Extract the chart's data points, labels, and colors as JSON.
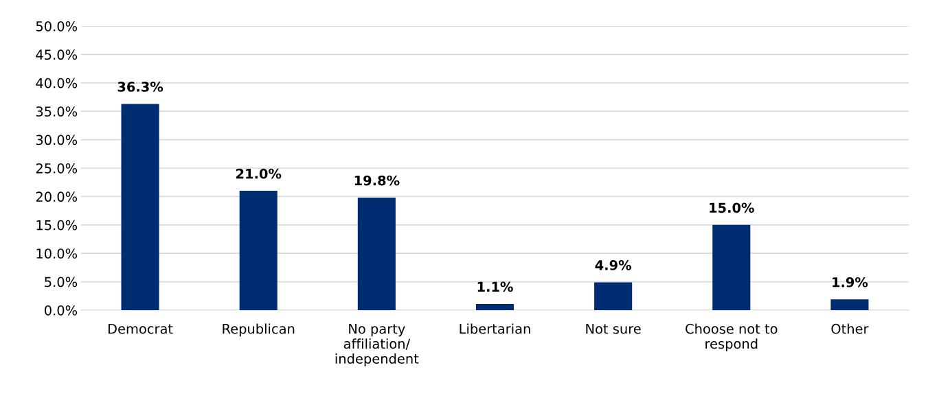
{
  "chart_data": {
    "type": "bar",
    "categories": [
      "Democrat",
      "Republican",
      "No party\naffiliation/\nindependent",
      "Libertarian",
      "Not sure",
      "Choose not to\nrespond",
      "Other"
    ],
    "values": [
      36.3,
      21.0,
      19.8,
      1.1,
      4.9,
      15.0,
      1.9
    ],
    "color": "#002d72",
    "value_labels": [
      "36.3%",
      "21.0%",
      "19.8%",
      "1.1%",
      "4.9%",
      "15.0%",
      "1.9%"
    ],
    "ylim": [
      0,
      50
    ],
    "yticks": [
      {
        "value": 0,
        "label": "0.0%"
      },
      {
        "value": 5,
        "label": "5.0%"
      },
      {
        "value": 10,
        "label": "10.0%"
      },
      {
        "value": 15,
        "label": "15.0%"
      },
      {
        "value": 20,
        "label": "20.0%"
      },
      {
        "value": 25,
        "label": "25.0%"
      },
      {
        "value": 30,
        "label": "30.0%"
      },
      {
        "value": 35,
        "label": "35.0%"
      },
      {
        "value": 40,
        "label": "40.0%"
      },
      {
        "value": 45,
        "label": "45.0%"
      },
      {
        "value": 50,
        "label": "50.0%"
      }
    ],
    "grid": "y",
    "legend": false
  }
}
